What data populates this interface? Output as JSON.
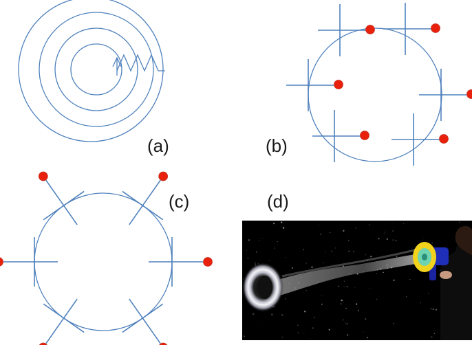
{
  "panels": {
    "a": {
      "label": "(a)"
    },
    "b": {
      "label": "(b)"
    },
    "c": {
      "label": "(c)"
    },
    "d": {
      "label": "(d)"
    }
  },
  "colors": {
    "line": "#4f81bd",
    "marker": "#e8200c",
    "marker_stroke": "#c0392b",
    "label": "#1a1a1a",
    "photo_background": "#000000",
    "vortex_ring": "#e6e6ee",
    "launcher_body": "#1f2fb8",
    "launcher_ring": "#f1d21c",
    "launcher_core": "#6fd3b0"
  },
  "icons": {
    "photo": "vortex-launcher-photo"
  }
}
